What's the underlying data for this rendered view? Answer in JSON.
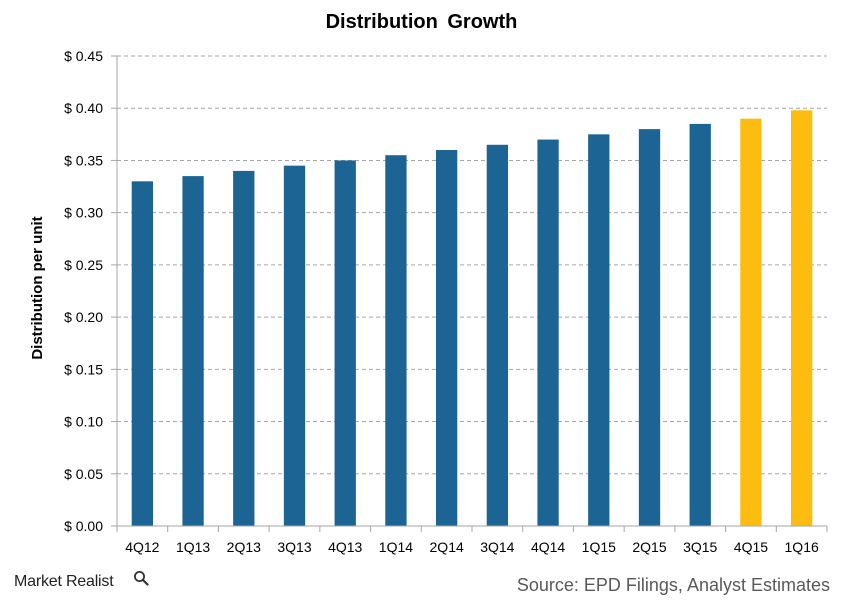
{
  "chart_data": {
    "type": "bar",
    "title": "Distribution  Growth",
    "xlabel": "",
    "ylabel": "Distribution per unit",
    "ylim": [
      0,
      0.45
    ],
    "yticks": [
      0.0,
      0.05,
      0.1,
      0.15,
      0.2,
      0.25,
      0.3,
      0.35,
      0.4,
      0.45
    ],
    "ytick_labels": [
      "$ 0.00",
      "$ 0.05",
      "$ 0.10",
      "$ 0.15",
      "$ 0.20",
      "$ 0.25",
      "$ 0.30",
      "$ 0.35",
      "$ 0.40",
      "$ 0.45"
    ],
    "grid": "horizontal-dashed",
    "categories": [
      "4Q12",
      "1Q13",
      "2Q13",
      "3Q13",
      "4Q13",
      "1Q14",
      "2Q14",
      "3Q14",
      "4Q14",
      "1Q15",
      "2Q15",
      "3Q15",
      "4Q15",
      "1Q16"
    ],
    "values": [
      0.33,
      0.335,
      0.34,
      0.345,
      0.35,
      0.355,
      0.36,
      0.365,
      0.37,
      0.375,
      0.38,
      0.385,
      0.39,
      0.398
    ],
    "bar_colors": [
      "#1c6493",
      "#1c6493",
      "#1c6493",
      "#1c6493",
      "#1c6493",
      "#1c6493",
      "#1c6493",
      "#1c6493",
      "#1c6493",
      "#1c6493",
      "#1c6493",
      "#1c6493",
      "#fdbd10",
      "#fdbd10"
    ],
    "colors": {
      "actual": "#1c6493",
      "estimate": "#fdbd10",
      "grid": "#a6a6a6",
      "axis": "#a6a6a6"
    }
  },
  "footer": {
    "brand": "Market Realist",
    "brand_icon": "magnifier-icon",
    "source": "Source: EPD Filings, Analyst Estimates"
  }
}
